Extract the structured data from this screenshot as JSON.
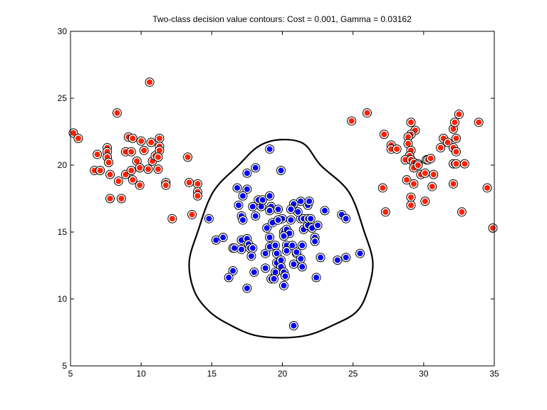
{
  "chart_data": {
    "type": "scatter",
    "title": "Two-class decision value contours: Cost = 0.001, Gamma = 0.03162",
    "xlabel": "",
    "ylabel": "",
    "xlim": [
      5,
      35
    ],
    "ylim": [
      5,
      30
    ],
    "xticks": [
      5,
      10,
      15,
      20,
      25,
      30,
      35
    ],
    "yticks": [
      5,
      10,
      15,
      20,
      25,
      30
    ],
    "grid": false,
    "colors": {
      "class_red": "#ff2000",
      "class_blue": "#0000ff",
      "contour": "#000000"
    },
    "series": [
      {
        "color": "#ff2000",
        "points": [
          [
            5.2,
            22.4
          ],
          [
            5.55,
            22.0
          ],
          [
            6.9,
            20.8
          ],
          [
            6.7,
            19.6
          ],
          [
            7.1,
            19.6
          ],
          [
            7.6,
            21.3
          ],
          [
            7.6,
            21.0
          ],
          [
            7.6,
            20.6
          ],
          [
            7.7,
            20.2
          ],
          [
            7.8,
            19.3
          ],
          [
            7.8,
            17.5
          ],
          [
            8.3,
            23.9
          ],
          [
            8.4,
            18.8
          ],
          [
            8.6,
            17.5
          ],
          [
            8.9,
            21.0
          ],
          [
            8.9,
            19.3
          ],
          [
            9.1,
            22.1
          ],
          [
            9.3,
            21.0
          ],
          [
            9.3,
            19.6
          ],
          [
            9.4,
            22.0
          ],
          [
            9.4,
            18.9
          ],
          [
            9.7,
            20.3
          ],
          [
            9.9,
            18.5
          ],
          [
            9.9,
            19.8
          ],
          [
            10.0,
            21.8
          ],
          [
            10.2,
            21.1
          ],
          [
            10.6,
            26.2
          ],
          [
            10.5,
            19.7
          ],
          [
            10.7,
            21.7
          ],
          [
            10.8,
            20.3
          ],
          [
            11.0,
            20.7
          ],
          [
            11.2,
            19.7
          ],
          [
            11.3,
            22.0
          ],
          [
            11.3,
            21.4
          ],
          [
            11.3,
            21.1
          ],
          [
            11.2,
            20.6
          ],
          [
            11.75,
            18.7
          ],
          [
            11.75,
            18.5
          ],
          [
            12.2,
            16.0
          ],
          [
            13.3,
            20.6
          ],
          [
            13.4,
            18.7
          ],
          [
            13.6,
            16.3
          ],
          [
            14.0,
            18.6
          ],
          [
            14.0,
            18.0
          ],
          [
            14.0,
            17.7
          ],
          [
            24.9,
            23.3
          ],
          [
            26.0,
            23.9
          ],
          [
            27.2,
            22.3
          ],
          [
            27.1,
            18.3
          ],
          [
            27.3,
            16.5
          ],
          [
            27.7,
            21.5
          ],
          [
            27.7,
            21.2
          ],
          [
            28.1,
            21.2
          ],
          [
            29.1,
            23.2
          ],
          [
            29.4,
            22.6
          ],
          [
            29.1,
            22.3
          ],
          [
            28.9,
            22.1
          ],
          [
            28.9,
            21.6
          ],
          [
            29.1,
            21.1
          ],
          [
            29.0,
            20.7
          ],
          [
            28.7,
            20.4
          ],
          [
            29.1,
            20.4
          ],
          [
            29.3,
            20.2
          ],
          [
            29.6,
            20.1
          ],
          [
            29.3,
            19.8
          ],
          [
            29.6,
            20.0
          ],
          [
            30.2,
            20.4
          ],
          [
            30.3,
            20.4
          ],
          [
            30.5,
            20.5
          ],
          [
            28.8,
            18.9
          ],
          [
            29.3,
            18.6
          ],
          [
            29.8,
            19.3
          ],
          [
            30.1,
            19.4
          ],
          [
            30.6,
            18.4
          ],
          [
            30.7,
            19.3
          ],
          [
            29.1,
            17.6
          ],
          [
            29.1,
            17.0
          ],
          [
            30.1,
            17.3
          ],
          [
            31.2,
            21.3
          ],
          [
            31.4,
            22.0
          ],
          [
            31.7,
            21.7
          ],
          [
            32.1,
            22.7
          ],
          [
            32.3,
            22.0
          ],
          [
            32.1,
            21.3
          ],
          [
            32.3,
            21.0
          ],
          [
            32.1,
            20.1
          ],
          [
            32.3,
            20.1
          ],
          [
            32.9,
            20.1
          ],
          [
            32.2,
            23.2
          ],
          [
            32.5,
            23.8
          ],
          [
            33.9,
            23.2
          ],
          [
            32.1,
            18.6
          ],
          [
            32.7,
            16.5
          ],
          [
            34.5,
            18.3
          ],
          [
            34.9,
            15.3
          ]
        ]
      },
      {
        "color": "#0000ff",
        "points": [
          [
            19.1,
            21.2
          ],
          [
            18.1,
            19.8
          ],
          [
            17.5,
            19.4
          ],
          [
            19.9,
            19.6
          ],
          [
            16.8,
            18.3
          ],
          [
            17.5,
            18.2
          ],
          [
            17.2,
            17.7
          ],
          [
            16.9,
            17.0
          ],
          [
            17.9,
            16.9
          ],
          [
            18.5,
            16.9
          ],
          [
            18.3,
            17.4
          ],
          [
            18.6,
            17.4
          ],
          [
            19.1,
            17.7
          ],
          [
            19.2,
            16.9
          ],
          [
            19.7,
            16.7
          ],
          [
            19.1,
            16.6
          ],
          [
            17.1,
            16.2
          ],
          [
            17.2,
            15.9
          ],
          [
            18.1,
            16.2
          ],
          [
            14.8,
            16.0
          ],
          [
            15.3,
            14.4
          ],
          [
            15.8,
            14.6
          ],
          [
            17.1,
            14.4
          ],
          [
            17.5,
            14.5
          ],
          [
            17.6,
            14.1
          ],
          [
            16.5,
            13.8
          ],
          [
            16.6,
            13.8
          ],
          [
            17.1,
            13.7
          ],
          [
            17.7,
            13.8
          ],
          [
            17.9,
            13.8
          ],
          [
            17.8,
            13.2
          ],
          [
            16.5,
            12.1
          ],
          [
            16.2,
            11.6
          ],
          [
            17.5,
            10.8
          ],
          [
            18.0,
            12.0
          ],
          [
            18.8,
            12.3
          ],
          [
            18.8,
            13.4
          ],
          [
            19.1,
            13.9
          ],
          [
            19.1,
            14.6
          ],
          [
            18.9,
            15.3
          ],
          [
            19.3,
            15.7
          ],
          [
            19.7,
            15.9
          ],
          [
            20.0,
            16.0
          ],
          [
            20.6,
            15.9
          ],
          [
            19.5,
            14.0
          ],
          [
            19.6,
            13.4
          ],
          [
            19.6,
            12.7
          ],
          [
            19.9,
            12.9
          ],
          [
            19.9,
            12.4
          ],
          [
            19.5,
            12.0
          ],
          [
            19.2,
            11.5
          ],
          [
            19.4,
            11.5
          ],
          [
            20.1,
            12.0
          ],
          [
            20.2,
            11.7
          ],
          [
            20.1,
            11.0
          ],
          [
            20.1,
            15.0
          ],
          [
            20.3,
            15.2
          ],
          [
            20.5,
            14.9
          ],
          [
            20.1,
            14.7
          ],
          [
            20.3,
            14.0
          ],
          [
            20.7,
            14.0
          ],
          [
            20.3,
            13.6
          ],
          [
            21.0,
            13.4
          ],
          [
            21.0,
            13.5
          ],
          [
            21.4,
            14.0
          ],
          [
            21.3,
            13.0
          ],
          [
            20.8,
            12.6
          ],
          [
            21.4,
            12.4
          ],
          [
            22.4,
            11.6
          ],
          [
            21.5,
            15.2
          ],
          [
            21.8,
            15.5
          ],
          [
            22.1,
            15.3
          ],
          [
            22.5,
            15.5
          ],
          [
            22.3,
            14.6
          ],
          [
            22.3,
            14.3
          ],
          [
            22.7,
            13.1
          ],
          [
            21.3,
            16.0
          ],
          [
            21.5,
            16.0
          ],
          [
            21.8,
            16.0
          ],
          [
            22.0,
            16.0
          ],
          [
            21.8,
            17.0
          ],
          [
            21.9,
            17.3
          ],
          [
            21.3,
            17.3
          ],
          [
            21.1,
            16.5
          ],
          [
            20.8,
            17.1
          ],
          [
            20.6,
            16.7
          ],
          [
            23.0,
            16.6
          ],
          [
            24.2,
            16.3
          ],
          [
            24.5,
            16.0
          ],
          [
            25.5,
            13.4
          ],
          [
            24.5,
            13.1
          ],
          [
            23.9,
            12.9
          ],
          [
            20.8,
            8.0
          ],
          [
            19.7,
            15.9
          ]
        ]
      }
    ],
    "contour": [
      [
        19.8,
        21.9
      ],
      [
        21.5,
        21.6
      ],
      [
        22.7,
        20.0
      ],
      [
        24.7,
        18.0
      ],
      [
        25.8,
        15.0
      ],
      [
        26.4,
        12.7
      ],
      [
        26.0,
        10.5
      ],
      [
        25.2,
        9.0
      ],
      [
        23.5,
        8.0
      ],
      [
        21.8,
        7.3
      ],
      [
        19.9,
        7.1
      ],
      [
        18.0,
        7.3
      ],
      [
        16.4,
        8.0
      ],
      [
        14.9,
        9.0
      ],
      [
        13.8,
        10.5
      ],
      [
        13.4,
        12.7
      ],
      [
        14.0,
        15.0
      ],
      [
        15.1,
        18.0
      ],
      [
        16.9,
        20.0
      ],
      [
        18.3,
        21.4
      ]
    ]
  }
}
